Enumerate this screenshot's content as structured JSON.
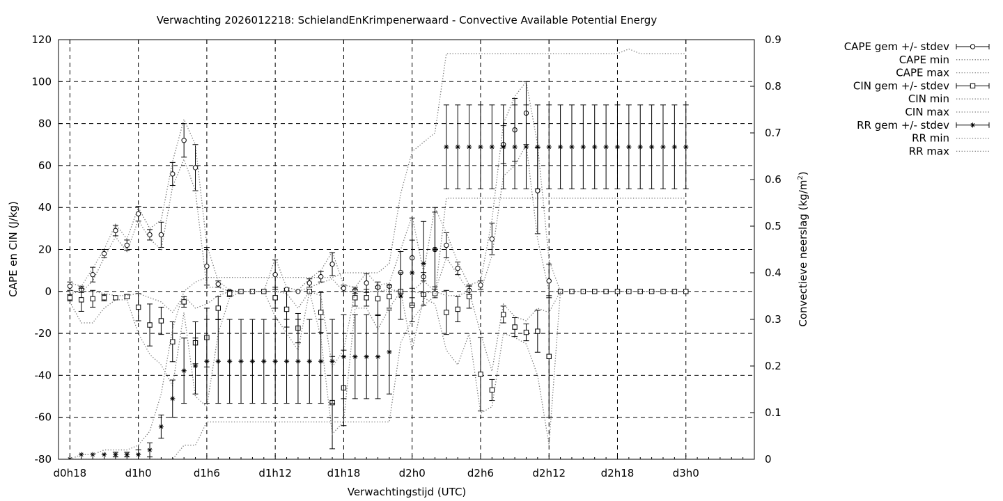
{
  "chart_data": {
    "type": "line",
    "title": "Verwachting 2026012218: SchielandEnKrimpenerwaard - Convective Available Potential Energy",
    "xlabel": "Verwachtingstijd (UTC)",
    "ylabel": "CAPE en CIN (J/kg)",
    "y2label_main": "Convectieve neerslag (kg/m",
    "y2label_sup": "2",
    "y2label_end": ")",
    "x_unit": "hours since d0h0",
    "xlim": [
      17,
      78
    ],
    "ylim": [
      -80,
      120
    ],
    "y2lim": [
      0,
      0.9
    ],
    "grid": true,
    "legend_position": "top-right outside",
    "x_ticks": [
      {
        "x": 18,
        "label": "d0h18"
      },
      {
        "x": 24,
        "label": "d1h0"
      },
      {
        "x": 30,
        "label": "d1h6"
      },
      {
        "x": 36,
        "label": "d1h12"
      },
      {
        "x": 42,
        "label": "d1h18"
      },
      {
        "x": 48,
        "label": "d2h0"
      },
      {
        "x": 54,
        "label": "d2h6"
      },
      {
        "x": 60,
        "label": "d2h12"
      },
      {
        "x": 66,
        "label": "d2h18"
      },
      {
        "x": 72,
        "label": "d3h0"
      }
    ],
    "y_ticks": [
      -80,
      -60,
      -40,
      -20,
      0,
      20,
      40,
      60,
      80,
      100,
      120
    ],
    "y2_ticks": [
      {
        "v": 0,
        "label": "0"
      },
      {
        "v": 0.1,
        "label": "0.1"
      },
      {
        "v": 0.2,
        "label": "0.2"
      },
      {
        "v": 0.3,
        "label": "0.3"
      },
      {
        "v": 0.4,
        "label": "0.4"
      },
      {
        "v": 0.5,
        "label": "0.5"
      },
      {
        "v": 0.6,
        "label": "0.6"
      },
      {
        "v": 0.7,
        "label": "0.7"
      },
      {
        "v": 0.8,
        "label": "0.8"
      },
      {
        "v": 0.9,
        "label": "0.9"
      }
    ],
    "x": [
      18,
      19,
      20,
      21,
      22,
      23,
      24,
      25,
      26,
      27,
      28,
      29,
      30,
      31,
      32,
      33,
      34,
      35,
      36,
      37,
      38,
      39,
      40,
      41,
      42,
      43,
      44,
      45,
      46,
      47,
      48,
      49,
      50,
      51,
      52,
      53,
      54,
      55,
      56,
      57,
      58,
      59,
      60,
      61,
      62,
      63,
      64,
      65,
      66,
      67,
      68,
      69,
      70,
      71,
      72
    ],
    "series": [
      {
        "name": "CAPE gem +/- stdev",
        "axis": "y1",
        "marker": "circle",
        "mean": [
          2.5,
          1,
          8,
          18,
          29,
          22,
          37,
          27,
          27,
          56,
          72,
          59,
          12,
          3.5,
          0,
          0,
          0,
          0,
          8,
          1,
          0,
          4,
          7,
          13,
          1.5,
          0.5,
          4,
          2,
          2.5,
          9,
          16,
          7,
          20,
          22,
          11,
          0.5,
          3,
          25,
          70,
          77,
          85,
          48,
          5,
          0,
          0,
          0,
          0,
          0,
          0,
          0,
          0,
          0,
          0,
          0,
          0
        ],
        "stdev": [
          2,
          1.5,
          3.5,
          2,
          2.5,
          2.5,
          3.5,
          2.5,
          6,
          5.5,
          8,
          11,
          9,
          1.5,
          0.5,
          0,
          0,
          0,
          7,
          0.5,
          0,
          2,
          2.5,
          5.5,
          1.5,
          1.5,
          4.5,
          0.5,
          0.5,
          10,
          19,
          2,
          20,
          6,
          3,
          2,
          2,
          7.5,
          9,
          15,
          15,
          20.5,
          8,
          0,
          0,
          0,
          0,
          0,
          0,
          0,
          0,
          0,
          0,
          0,
          0
        ]
      },
      {
        "name": "CAPE min",
        "axis": "y1",
        "style": "dotted",
        "values": [
          0.5,
          -0.5,
          5,
          16,
          26,
          19,
          34,
          25,
          20,
          50,
          63,
          48,
          2,
          2,
          0,
          0,
          0,
          0,
          0,
          0,
          0,
          2,
          4,
          6,
          0,
          0,
          0,
          0,
          1,
          0,
          0,
          5,
          0,
          16,
          8,
          0,
          0,
          17,
          55,
          60,
          70,
          25,
          0,
          0,
          0,
          0,
          0,
          0,
          0,
          0,
          0,
          0,
          0,
          0,
          0
        ]
      },
      {
        "name": "CAPE max",
        "axis": "y1",
        "style": "dotted",
        "values": [
          4,
          2.5,
          11,
          20,
          32,
          25,
          40,
          30,
          34,
          62,
          82,
          70,
          22,
          5,
          0.5,
          0,
          0,
          0,
          16,
          2,
          0.5,
          6,
          10,
          19,
          3,
          2,
          9,
          3,
          4,
          20,
          36,
          9,
          40,
          28,
          14,
          3,
          5,
          34,
          80,
          93,
          100,
          70,
          15,
          0,
          0,
          0,
          0,
          0,
          0,
          0,
          0,
          0,
          0,
          0,
          0
        ]
      },
      {
        "name": "CIN gem +/- stdev",
        "axis": "y1",
        "marker": "square",
        "mean": [
          -3,
          -4,
          -3.5,
          -3,
          -3,
          -2.5,
          -7.5,
          -16,
          -14,
          -24,
          -5,
          -24.5,
          -22,
          -8,
          -1,
          0,
          0,
          0,
          -3,
          -8.5,
          -17.5,
          0,
          -10,
          -53,
          -46,
          -3,
          -3,
          -3.5,
          -2.5,
          0,
          -6.5,
          -1.5,
          -1,
          -10,
          -8.5,
          -2.5,
          -39.5,
          -47,
          -11,
          -17,
          -19.5,
          -19,
          -31,
          0,
          0,
          0,
          0,
          0,
          0,
          0,
          0,
          0,
          0,
          0,
          0
        ],
        "stdev": [
          1.5,
          5.5,
          4,
          1.5,
          1,
          1,
          6.5,
          10,
          6.5,
          9.5,
          2.5,
          10,
          14,
          5.5,
          1.5,
          0,
          0,
          0,
          5,
          8.5,
          7,
          0,
          9.5,
          22,
          18,
          4,
          4,
          8,
          5.5,
          0,
          8,
          0.5,
          2,
          10.5,
          6,
          5.5,
          17.5,
          5,
          4,
          4.5,
          4,
          10,
          29,
          0,
          0,
          0,
          0,
          0,
          0,
          0,
          0,
          0,
          0,
          0,
          0
        ]
      },
      {
        "name": "CIN min",
        "axis": "y1",
        "style": "dotted",
        "values": [
          -5,
          -15,
          -15,
          -8,
          -4,
          -4,
          -20,
          -30,
          -35,
          -45,
          -10,
          -50,
          -55,
          -20,
          -3,
          0,
          0,
          0,
          -12,
          -20,
          -28,
          0,
          -22,
          -68,
          -62,
          -8,
          -8,
          -18,
          -8,
          0,
          -28,
          -3,
          -6,
          -28,
          -35,
          -20,
          -58,
          -55,
          -20,
          -22,
          -25,
          -40,
          -73,
          0,
          0,
          0,
          0,
          0,
          0,
          0,
          0,
          0,
          0,
          0,
          0
        ]
      },
      {
        "name": "CIN max",
        "axis": "y1",
        "style": "dotted",
        "values": [
          -1,
          0,
          0,
          -1,
          -2,
          -2,
          -1,
          -3,
          -5,
          -10,
          -2,
          -8,
          -6,
          -2,
          0,
          0,
          0,
          0,
          0,
          -1,
          -8,
          0,
          -2,
          -36,
          -28,
          0,
          0,
          0,
          0,
          0,
          0,
          -1,
          0,
          -2,
          -2,
          0,
          -20,
          -38,
          -6,
          -12,
          -14,
          -8,
          -10,
          0,
          0,
          0,
          0,
          0,
          0,
          0,
          0,
          0,
          0,
          0,
          0
        ]
      },
      {
        "name": "RR gem +/- stdev",
        "axis": "y2",
        "marker": "star",
        "mean": [
          0,
          0.01,
          0.01,
          0.01,
          0.01,
          0.01,
          0.01,
          0.02,
          0.07,
          0.13,
          0.19,
          0.2,
          0.21,
          0.21,
          0.21,
          0.21,
          0.21,
          0.21,
          0.21,
          0.21,
          0.21,
          0.21,
          0.21,
          0.21,
          0.22,
          0.22,
          0.22,
          0.22,
          0.23,
          0.35,
          0.4,
          0.42,
          0.45,
          0.67,
          0.67,
          0.67,
          0.67,
          0.67,
          0.67,
          0.67,
          0.67,
          0.67,
          0.67,
          0.67,
          0.67,
          0.67,
          0.67,
          0.67,
          0.67,
          0.67,
          0.67,
          0.67,
          0.67,
          0.67,
          0.67
        ],
        "stdev": [
          0,
          0,
          0,
          0,
          0.005,
          0.005,
          0.01,
          0.015,
          0.025,
          0.04,
          0.07,
          0.06,
          0.09,
          0.09,
          0.09,
          0.09,
          0.09,
          0.09,
          0.09,
          0.09,
          0.09,
          0.09,
          0.09,
          0.09,
          0.09,
          0.09,
          0.09,
          0.09,
          0.09,
          0.05,
          0.07,
          0.09,
          0.08,
          0.09,
          0.09,
          0.09,
          0.09,
          0.09,
          0.09,
          0.09,
          0.09,
          0.09,
          0.09,
          0.09,
          0.09,
          0.09,
          0.09,
          0.09,
          0.09,
          0.09,
          0.09,
          0.09,
          0.09,
          0.09,
          0.09
        ]
      },
      {
        "name": "RR min",
        "axis": "y2",
        "style": "dotted",
        "values": [
          0,
          0,
          0,
          0,
          0,
          0,
          0,
          0,
          0,
          0,
          0.03,
          0.03,
          0.08,
          0.08,
          0.08,
          0.08,
          0.08,
          0.08,
          0.08,
          0.08,
          0.08,
          0.08,
          0.08,
          0.08,
          0.08,
          0.08,
          0.08,
          0.08,
          0.08,
          0.25,
          0.3,
          0.33,
          0.35,
          0.56,
          0.56,
          0.56,
          0.56,
          0.56,
          0.56,
          0.56,
          0.56,
          0.56,
          0.56,
          0.56,
          0.56,
          0.56,
          0.56,
          0.56,
          0.56,
          0.56,
          0.56,
          0.56,
          0.56,
          0.56,
          0.56
        ]
      },
      {
        "name": "RR max",
        "axis": "y2",
        "style": "dotted",
        "values": [
          0,
          0.01,
          0.01,
          0.02,
          0.02,
          0.02,
          0.03,
          0.06,
          0.14,
          0.28,
          0.36,
          0.38,
          0.39,
          0.39,
          0.39,
          0.39,
          0.39,
          0.39,
          0.39,
          0.39,
          0.39,
          0.39,
          0.39,
          0.39,
          0.4,
          0.4,
          0.4,
          0.4,
          0.42,
          0.57,
          0.66,
          0.68,
          0.7,
          0.87,
          0.87,
          0.87,
          0.87,
          0.87,
          0.87,
          0.87,
          0.87,
          0.87,
          0.87,
          0.87,
          0.87,
          0.87,
          0.87,
          0.87,
          0.87,
          0.88,
          0.87,
          0.87,
          0.87,
          0.87,
          0.87
        ]
      }
    ]
  }
}
